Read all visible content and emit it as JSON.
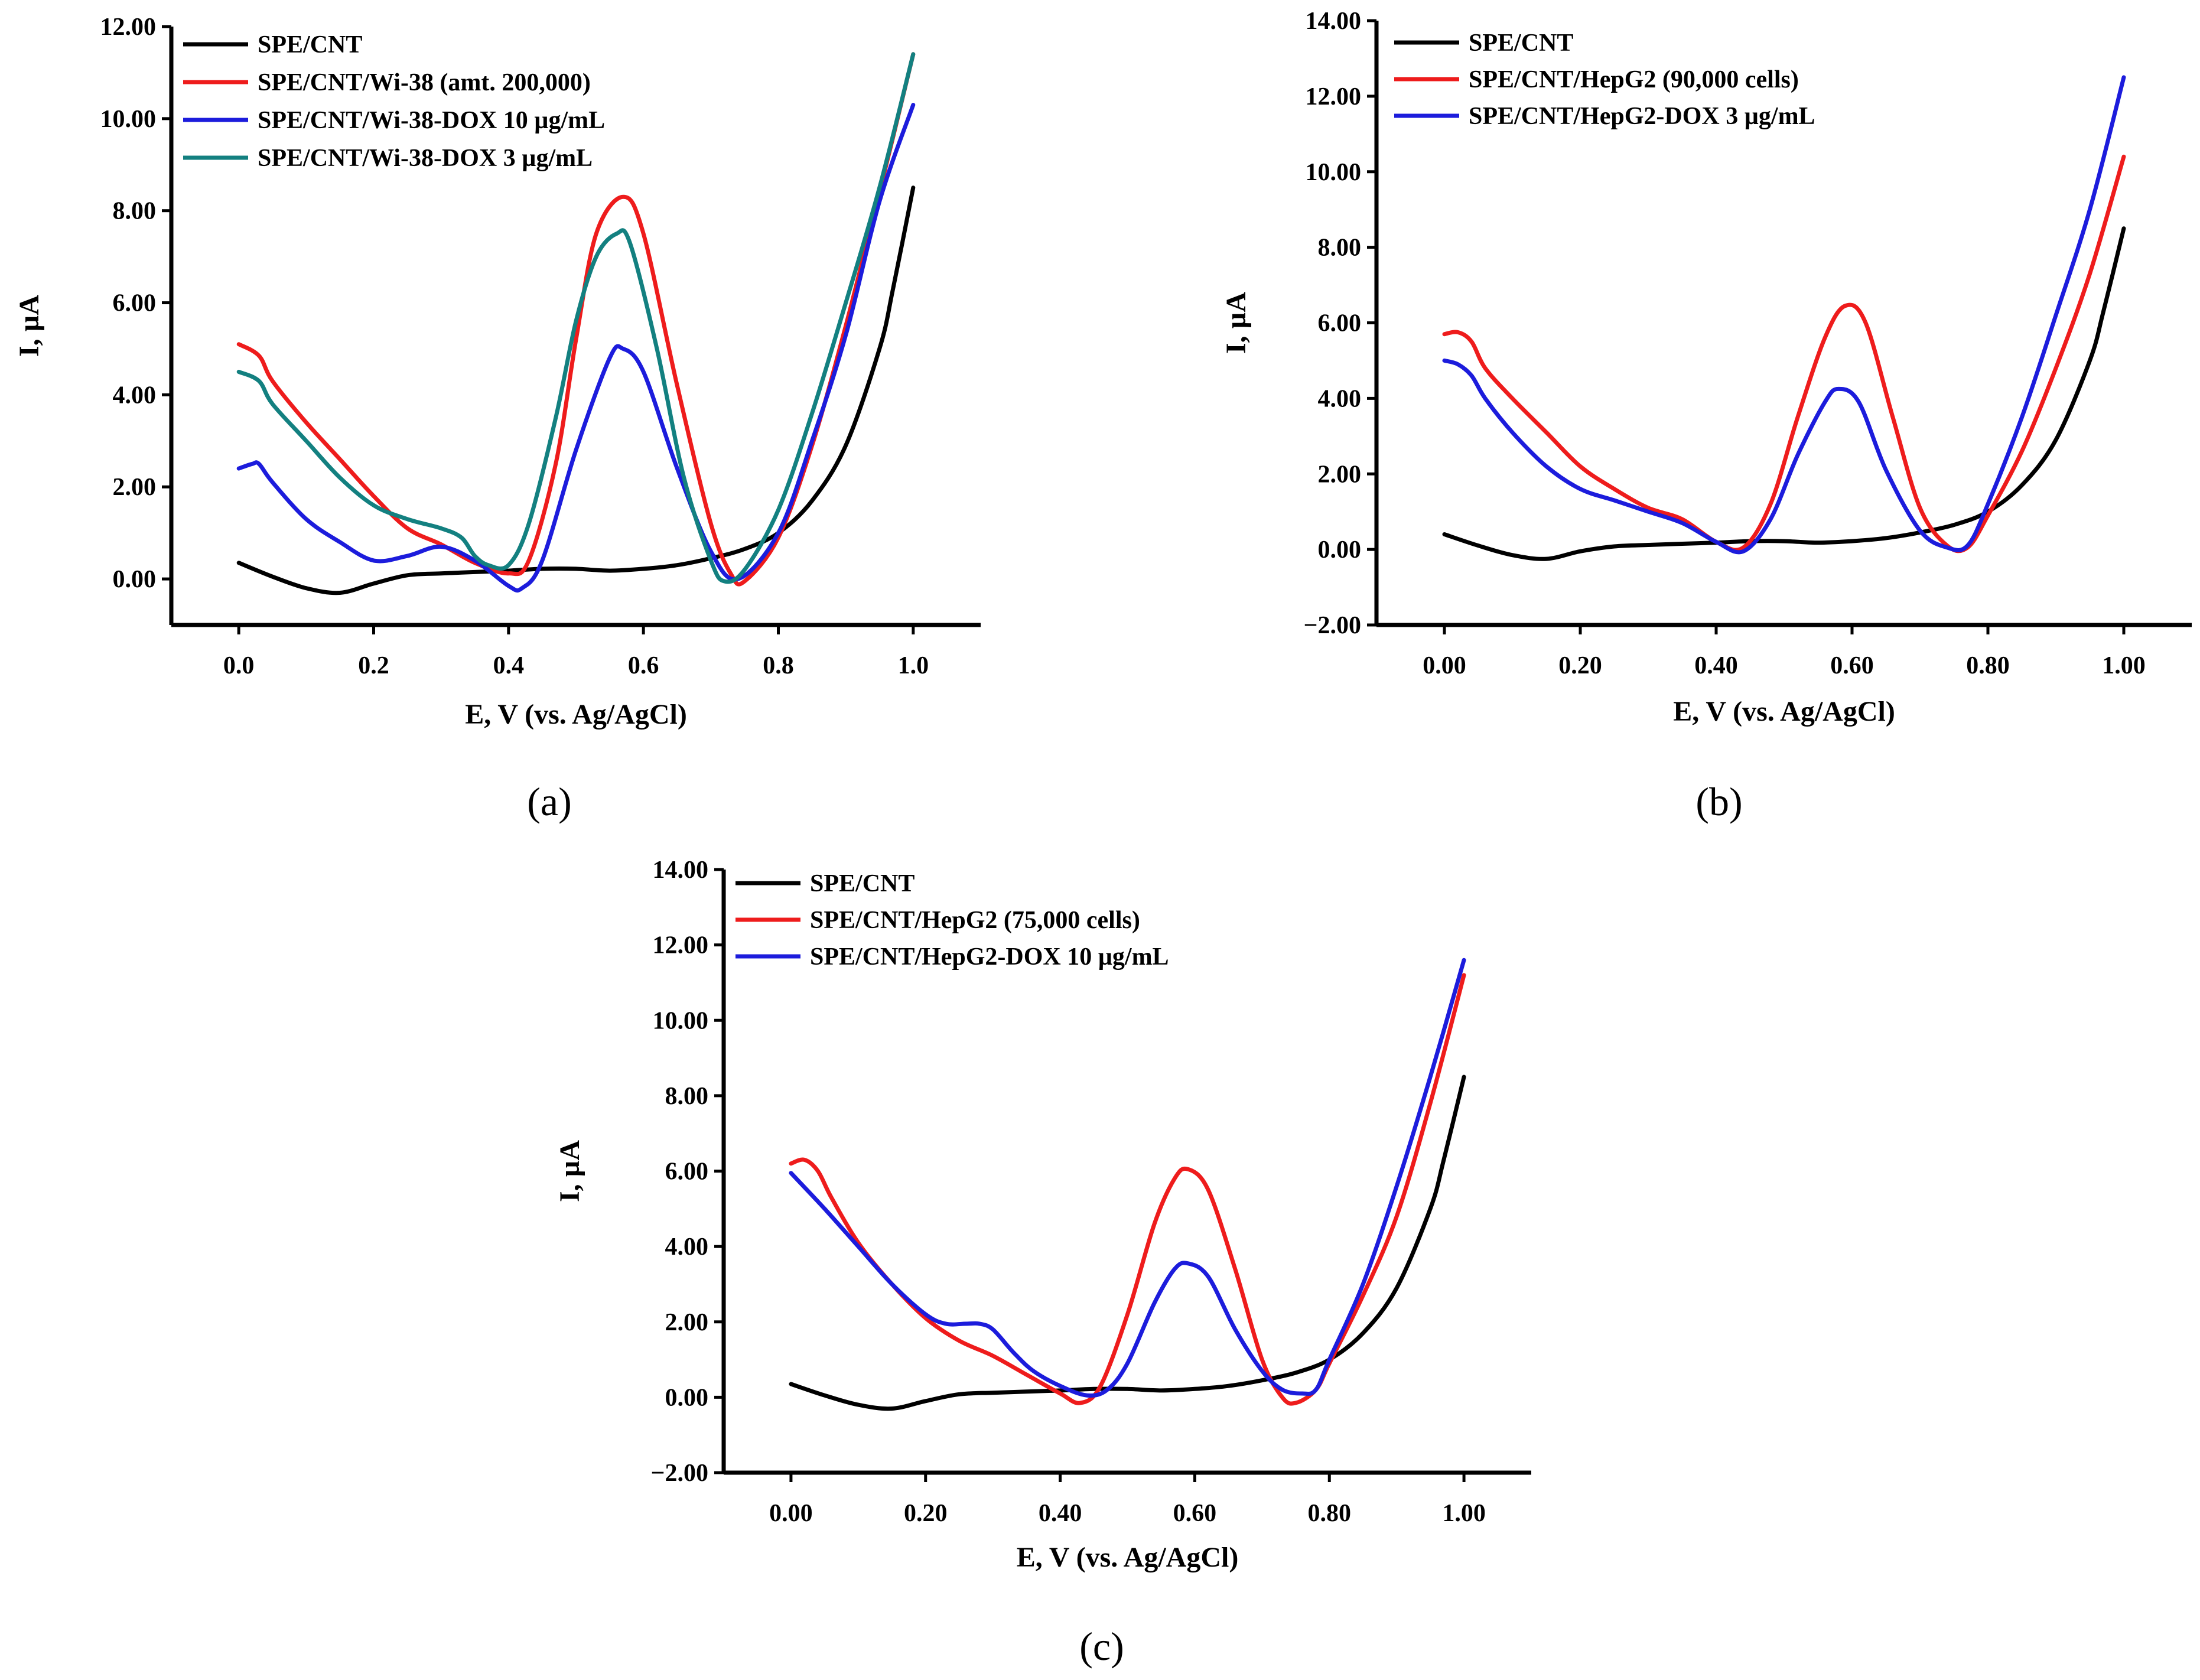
{
  "chart_data": [
    {
      "type": "line",
      "panel_label": "(a)",
      "xlabel": "E, V (vs. Ag/AgCl)",
      "ylabel": "I, µA",
      "xlim": [
        -0.1,
        1.1
      ],
      "ylim": [
        -1.0,
        12.0
      ],
      "xticks": [
        0.0,
        0.2,
        0.4,
        0.6,
        0.8,
        1.0
      ],
      "xtick_labels": [
        "0.0",
        "0.2",
        "0.4",
        "0.6",
        "0.8",
        "1.0"
      ],
      "yticks": [
        0,
        2,
        4,
        6,
        8,
        10,
        12
      ],
      "ytick_labels": [
        "0.00",
        "2.00",
        "4.00",
        "6.00",
        "8.00",
        "10.00",
        "12.00"
      ],
      "legend_position": "top-left",
      "series": [
        {
          "name": "SPE/CNT",
          "color": "#000000",
          "x": [
            0.0,
            0.05,
            0.1,
            0.15,
            0.2,
            0.25,
            0.3,
            0.35,
            0.4,
            0.45,
            0.5,
            0.55,
            0.6,
            0.65,
            0.7,
            0.75,
            0.8,
            0.85,
            0.9,
            0.95,
            0.97,
            1.0
          ],
          "y": [
            0.35,
            0.05,
            -0.2,
            -0.3,
            -0.1,
            0.08,
            0.12,
            0.15,
            0.18,
            0.22,
            0.22,
            0.18,
            0.22,
            0.3,
            0.45,
            0.65,
            1.0,
            1.7,
            2.9,
            5.0,
            6.3,
            8.5
          ]
        },
        {
          "name": "SPE/CNT/Wi-38 (amt. 200,000)",
          "color": "#ee1c1c",
          "x": [
            0.0,
            0.03,
            0.05,
            0.1,
            0.15,
            0.2,
            0.25,
            0.3,
            0.35,
            0.4,
            0.43,
            0.47,
            0.5,
            0.53,
            0.57,
            0.6,
            0.65,
            0.7,
            0.73,
            0.75,
            0.8,
            0.85,
            0.9,
            0.95,
            1.0
          ],
          "y": [
            5.1,
            4.85,
            4.3,
            3.4,
            2.6,
            1.8,
            1.1,
            0.75,
            0.35,
            0.12,
            0.4,
            2.5,
            5.2,
            7.5,
            8.3,
            7.5,
            4.2,
            1.2,
            0.1,
            -0.05,
            0.9,
            2.9,
            5.5,
            8.4,
            11.4
          ]
        },
        {
          "name": "SPE/CNT/Wi-38-DOX 10 µg/mL",
          "color": "#1c1cdc",
          "x": [
            0.0,
            0.02,
            0.03,
            0.05,
            0.1,
            0.15,
            0.2,
            0.25,
            0.3,
            0.35,
            0.4,
            0.42,
            0.45,
            0.5,
            0.55,
            0.57,
            0.6,
            0.65,
            0.7,
            0.74,
            0.8,
            0.85,
            0.9,
            0.95,
            1.0
          ],
          "y": [
            2.4,
            2.5,
            2.5,
            2.1,
            1.3,
            0.8,
            0.4,
            0.5,
            0.7,
            0.4,
            -0.15,
            -0.2,
            0.4,
            2.8,
            4.8,
            5.0,
            4.5,
            2.4,
            0.6,
            0.0,
            1.0,
            3.0,
            5.3,
            8.2,
            10.3
          ]
        },
        {
          "name": "SPE/CNT/Wi-38-DOX 3 µg/mL",
          "color": "#138080",
          "x": [
            0.0,
            0.03,
            0.05,
            0.1,
            0.15,
            0.2,
            0.25,
            0.3,
            0.33,
            0.35,
            0.37,
            0.4,
            0.43,
            0.47,
            0.5,
            0.53,
            0.56,
            0.58,
            0.62,
            0.66,
            0.7,
            0.72,
            0.75,
            0.8,
            0.85,
            0.9,
            0.95,
            1.0
          ],
          "y": [
            4.5,
            4.3,
            3.8,
            3.0,
            2.2,
            1.6,
            1.3,
            1.1,
            0.9,
            0.5,
            0.3,
            0.3,
            1.2,
            3.5,
            5.6,
            7.0,
            7.5,
            7.3,
            5.0,
            2.2,
            0.4,
            -0.05,
            0.2,
            1.5,
            3.6,
            6.0,
            8.5,
            11.4
          ]
        }
      ]
    },
    {
      "type": "line",
      "panel_label": "(b)",
      "xlabel": "E, V (vs. Ag/AgCl)",
      "ylabel": "I, µA",
      "xlim": [
        -0.1,
        1.1
      ],
      "ylim": [
        -2.0,
        14.0
      ],
      "xticks": [
        0.0,
        0.2,
        0.4,
        0.6,
        0.8,
        1.0
      ],
      "xtick_labels": [
        "0.00",
        "0.20",
        "0.40",
        "0.60",
        "0.80",
        "1.00"
      ],
      "yticks": [
        -2,
        0,
        2,
        4,
        6,
        8,
        10,
        12,
        14
      ],
      "ytick_labels": [
        "−2.00",
        "0.00",
        "2.00",
        "4.00",
        "6.00",
        "8.00",
        "10.00",
        "12.00",
        "14.00"
      ],
      "legend_position": "top-left",
      "series": [
        {
          "name": "SPE/CNT",
          "color": "#000000",
          "x": [
            0.0,
            0.05,
            0.1,
            0.15,
            0.2,
            0.25,
            0.3,
            0.35,
            0.4,
            0.45,
            0.5,
            0.55,
            0.6,
            0.65,
            0.7,
            0.75,
            0.8,
            0.85,
            0.9,
            0.95,
            0.97,
            1.0
          ],
          "y": [
            0.4,
            0.1,
            -0.15,
            -0.25,
            -0.05,
            0.08,
            0.12,
            0.15,
            0.18,
            0.22,
            0.22,
            0.18,
            0.22,
            0.3,
            0.45,
            0.65,
            1.0,
            1.7,
            2.9,
            5.0,
            6.3,
            8.5
          ]
        },
        {
          "name": "SPE/CNT/HepG2 (90,000 cells)",
          "color": "#ee1c1c",
          "x": [
            0.0,
            0.02,
            0.04,
            0.06,
            0.1,
            0.15,
            0.2,
            0.25,
            0.3,
            0.35,
            0.4,
            0.44,
            0.48,
            0.52,
            0.56,
            0.59,
            0.62,
            0.66,
            0.7,
            0.74,
            0.77,
            0.8,
            0.85,
            0.9,
            0.95,
            1.0
          ],
          "y": [
            5.7,
            5.75,
            5.5,
            4.8,
            4.0,
            3.1,
            2.2,
            1.6,
            1.1,
            0.8,
            0.2,
            0.05,
            1.2,
            3.5,
            5.6,
            6.45,
            6.0,
            3.5,
            1.1,
            0.1,
            0.05,
            0.9,
            2.6,
            4.8,
            7.3,
            10.4
          ]
        },
        {
          "name": "SPE/CNT/HepG2-DOX 3 µg/mL",
          "color": "#1c1cdc",
          "x": [
            0.0,
            0.02,
            0.04,
            0.06,
            0.1,
            0.15,
            0.2,
            0.25,
            0.3,
            0.35,
            0.4,
            0.44,
            0.48,
            0.52,
            0.56,
            0.58,
            0.61,
            0.65,
            0.7,
            0.74,
            0.77,
            0.8,
            0.85,
            0.9,
            0.95,
            1.0
          ],
          "y": [
            5.0,
            4.9,
            4.6,
            4.0,
            3.1,
            2.2,
            1.6,
            1.3,
            1.0,
            0.7,
            0.2,
            -0.05,
            0.8,
            2.5,
            3.9,
            4.25,
            3.9,
            2.1,
            0.5,
            0.05,
            0.1,
            1.2,
            3.5,
            6.2,
            9.0,
            12.5
          ]
        }
      ]
    },
    {
      "type": "line",
      "panel_label": "(c)",
      "xlabel": "E, V (vs. Ag/AgCl)",
      "ylabel": "I, µA",
      "xlim": [
        -0.1,
        1.1
      ],
      "ylim": [
        -2.0,
        14.0
      ],
      "xticks": [
        0.0,
        0.2,
        0.4,
        0.6,
        0.8,
        1.0
      ],
      "xtick_labels": [
        "0.00",
        "0.20",
        "0.40",
        "0.60",
        "0.80",
        "1.00"
      ],
      "yticks": [
        -2,
        0,
        2,
        4,
        6,
        8,
        10,
        12,
        14
      ],
      "ytick_labels": [
        "−2.00",
        "0.00",
        "2.00",
        "4.00",
        "6.00",
        "8.00",
        "10.00",
        "12.00",
        "14.00"
      ],
      "legend_position": "top-left",
      "series": [
        {
          "name": "SPE/CNT",
          "color": "#000000",
          "x": [
            0.0,
            0.05,
            0.1,
            0.15,
            0.2,
            0.25,
            0.3,
            0.35,
            0.4,
            0.45,
            0.5,
            0.55,
            0.6,
            0.65,
            0.7,
            0.75,
            0.8,
            0.85,
            0.9,
            0.95,
            0.97,
            1.0
          ],
          "y": [
            0.35,
            0.05,
            -0.2,
            -0.3,
            -0.1,
            0.08,
            0.12,
            0.15,
            0.18,
            0.22,
            0.22,
            0.18,
            0.22,
            0.3,
            0.45,
            0.65,
            1.0,
            1.7,
            2.9,
            5.0,
            6.3,
            8.5
          ]
        },
        {
          "name": "SPE/CNT/HepG2 (75,000 cells)",
          "color": "#ee1c1c",
          "x": [
            0.0,
            0.02,
            0.04,
            0.06,
            0.1,
            0.15,
            0.2,
            0.25,
            0.3,
            0.35,
            0.4,
            0.43,
            0.46,
            0.5,
            0.54,
            0.57,
            0.59,
            0.62,
            0.66,
            0.7,
            0.73,
            0.75,
            0.78,
            0.8,
            0.85,
            0.9,
            0.95,
            1.0
          ],
          "y": [
            6.2,
            6.3,
            6.0,
            5.3,
            4.1,
            3.0,
            2.1,
            1.5,
            1.1,
            0.6,
            0.1,
            -0.15,
            0.3,
            2.2,
            4.6,
            5.8,
            6.05,
            5.5,
            3.4,
            1.0,
            0.0,
            -0.15,
            0.2,
            0.9,
            2.7,
            4.8,
            7.8,
            11.2
          ]
        },
        {
          "name": "SPE/CNT/HepG2-DOX 10 µg/mL",
          "color": "#1c1cdc",
          "x": [
            0.0,
            0.05,
            0.1,
            0.15,
            0.2,
            0.23,
            0.26,
            0.28,
            0.3,
            0.33,
            0.36,
            0.4,
            0.44,
            0.47,
            0.5,
            0.54,
            0.57,
            0.59,
            0.62,
            0.66,
            0.7,
            0.73,
            0.76,
            0.78,
            0.8,
            0.85,
            0.9,
            0.95,
            1.0
          ],
          "y": [
            5.95,
            5.0,
            4.0,
            3.0,
            2.2,
            1.95,
            1.95,
            1.95,
            1.8,
            1.2,
            0.7,
            0.3,
            0.05,
            0.2,
            0.9,
            2.5,
            3.4,
            3.55,
            3.2,
            1.8,
            0.7,
            0.2,
            0.1,
            0.2,
            1.0,
            3.0,
            5.6,
            8.5,
            11.6
          ]
        }
      ]
    }
  ]
}
